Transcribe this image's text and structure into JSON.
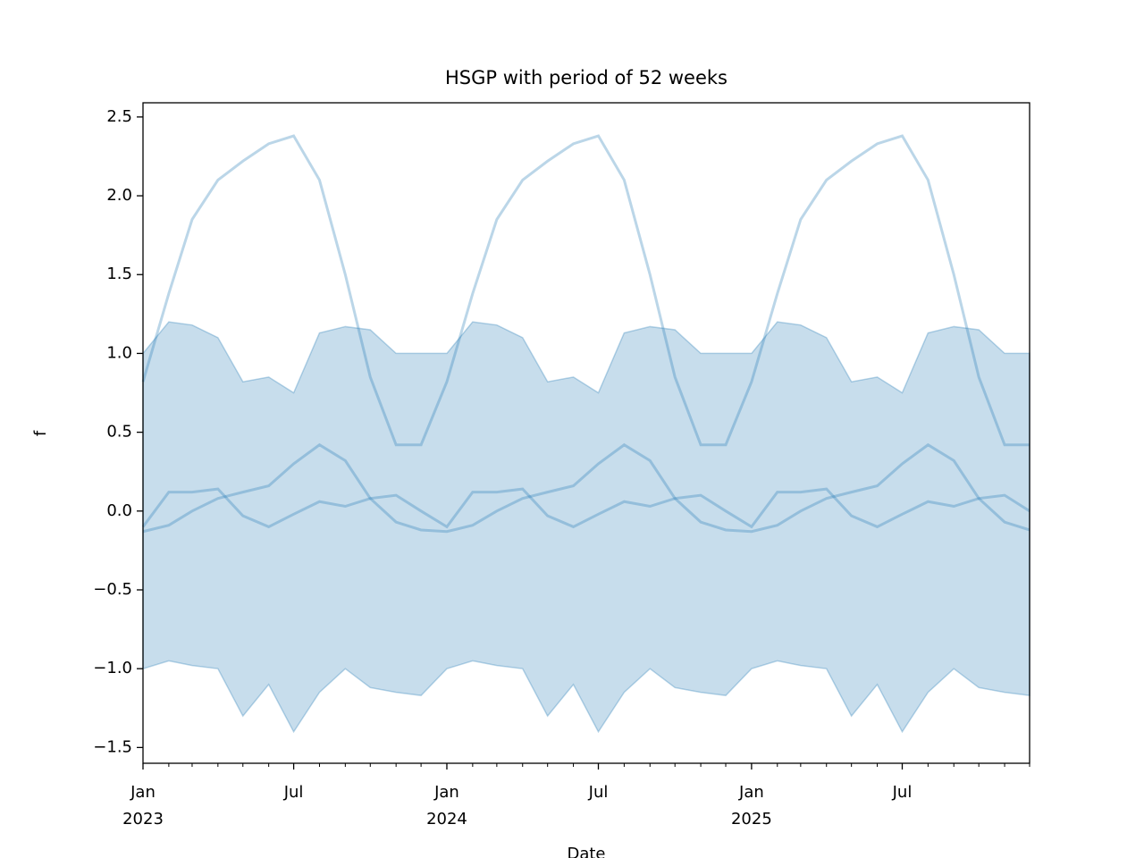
{
  "chart_data": {
    "type": "band-lines",
    "title": "HSGP with period of 52 weeks",
    "xlabel": "Date",
    "ylabel": "f",
    "x": [
      "2023-01",
      "2023-02",
      "2023-03",
      "2023-04",
      "2023-05",
      "2023-06",
      "2023-07",
      "2023-08",
      "2023-09",
      "2023-10",
      "2023-11",
      "2023-12",
      "2024-01",
      "2024-02",
      "2024-03",
      "2024-04",
      "2024-05",
      "2024-06",
      "2024-07",
      "2024-08",
      "2024-09",
      "2024-10",
      "2024-11",
      "2024-12",
      "2025-01",
      "2025-02",
      "2025-03",
      "2025-04",
      "2025-05",
      "2025-06",
      "2025-07",
      "2025-08",
      "2025-09",
      "2025-10",
      "2025-11",
      "2025-12"
    ],
    "band": {
      "color": "#1f77b4",
      "upper": [
        1.0,
        1.2,
        1.18,
        1.1,
        0.82,
        0.85,
        0.75,
        1.13,
        1.17,
        1.15,
        1.0,
        1.0,
        1.0,
        1.2,
        1.18,
        1.1,
        0.82,
        0.85,
        0.75,
        1.13,
        1.17,
        1.15,
        1.0,
        1.0,
        1.0,
        1.2,
        1.18,
        1.1,
        0.82,
        0.85,
        0.75,
        1.13,
        1.17,
        1.15,
        1.0,
        1.0
      ],
      "lower": [
        -1.0,
        -0.95,
        -0.98,
        -1.0,
        -1.3,
        -1.1,
        -1.4,
        -1.15,
        -1.0,
        -1.12,
        -1.15,
        -1.17,
        -1.0,
        -0.95,
        -0.98,
        -1.0,
        -1.3,
        -1.1,
        -1.4,
        -1.15,
        -1.0,
        -1.12,
        -1.15,
        -1.17,
        -1.0,
        -0.95,
        -0.98,
        -1.0,
        -1.3,
        -1.1,
        -1.4,
        -1.15,
        -1.0,
        -1.12,
        -1.15,
        -1.17
      ]
    },
    "series": [
      {
        "color": "#1f77b4",
        "values": [
          0.82,
          1.38,
          1.85,
          2.1,
          2.22,
          2.33,
          2.38,
          2.1,
          1.5,
          0.85,
          0.42,
          0.42,
          0.82,
          1.38,
          1.85,
          2.1,
          2.22,
          2.33,
          2.38,
          2.1,
          1.5,
          0.85,
          0.42,
          0.42,
          0.82,
          1.38,
          1.85,
          2.1,
          2.22,
          2.33,
          2.38,
          2.1,
          1.5,
          0.85,
          0.42,
          0.42
        ]
      },
      {
        "color": "#1f77b4",
        "values": [
          -0.13,
          -0.09,
          0.0,
          0.08,
          0.12,
          0.16,
          0.3,
          0.42,
          0.32,
          0.08,
          -0.07,
          -0.12,
          -0.13,
          -0.09,
          0.0,
          0.08,
          0.12,
          0.16,
          0.3,
          0.42,
          0.32,
          0.08,
          -0.07,
          -0.12,
          -0.13,
          -0.09,
          0.0,
          0.08,
          0.12,
          0.16,
          0.3,
          0.42,
          0.32,
          0.08,
          -0.07,
          -0.12
        ]
      },
      {
        "color": "#1f77b4",
        "values": [
          -0.1,
          0.12,
          0.12,
          0.14,
          -0.03,
          -0.1,
          -0.02,
          0.06,
          0.03,
          0.08,
          0.1,
          0.0,
          -0.1,
          0.12,
          0.12,
          0.14,
          -0.03,
          -0.1,
          -0.02,
          0.06,
          0.03,
          0.08,
          0.1,
          0.0,
          -0.1,
          0.12,
          0.12,
          0.14,
          -0.03,
          -0.1,
          -0.02,
          0.06,
          0.03,
          0.08,
          0.1,
          0.0
        ]
      }
    ],
    "xlim": [
      "2023-01",
      "2025-12"
    ],
    "xticks": [
      {
        "value": "2023-01",
        "label": "Jan\n2023"
      },
      {
        "value": "2023-07",
        "label": "Jul"
      },
      {
        "value": "2024-01",
        "label": "Jan\n2024"
      },
      {
        "value": "2024-07",
        "label": "Jul"
      },
      {
        "value": "2025-01",
        "label": "Jan\n2025"
      },
      {
        "value": "2025-07",
        "label": "Jul"
      }
    ],
    "xminorticks": [
      "2023-02",
      "2023-03",
      "2023-04",
      "2023-05",
      "2023-06",
      "2023-08",
      "2023-09",
      "2023-10",
      "2023-11",
      "2023-12",
      "2024-02",
      "2024-03",
      "2024-04",
      "2024-05",
      "2024-06",
      "2024-08",
      "2024-09",
      "2024-10",
      "2024-11",
      "2024-12",
      "2025-02",
      "2025-03",
      "2025-04",
      "2025-05",
      "2025-06",
      "2025-08",
      "2025-09",
      "2025-10",
      "2025-11",
      "2025-12"
    ],
    "ylim": [
      -1.6,
      2.59
    ],
    "yticks": [
      {
        "value": -1.5,
        "label": "−1.5"
      },
      {
        "value": -1.0,
        "label": "−1.0"
      },
      {
        "value": -0.5,
        "label": "−0.5"
      },
      {
        "value": 0,
        "label": "0.0"
      },
      0.5,
      {
        "value": 1,
        "label": "1.0"
      },
      1.5,
      {
        "value": 2,
        "label": "2.0"
      },
      2.5
    ]
  }
}
